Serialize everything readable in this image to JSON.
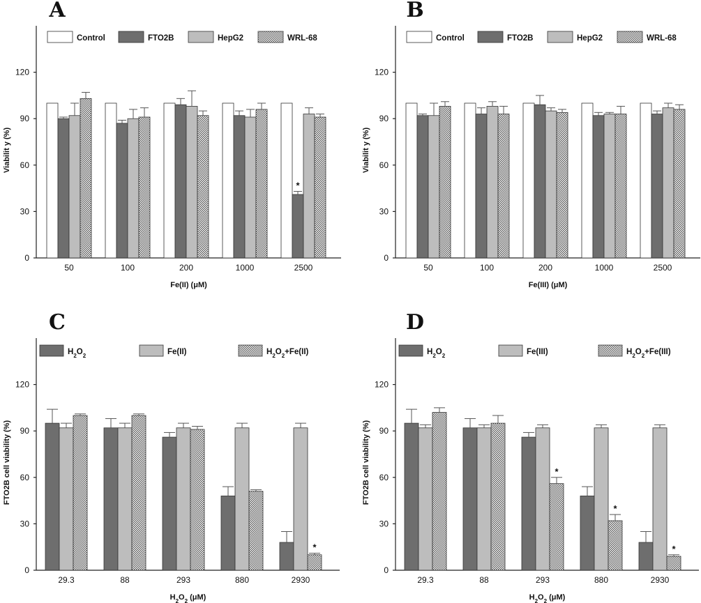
{
  "chart_data": [
    {
      "panel": "A",
      "type": "bar",
      "xlabel": "Fe(II) (μM)",
      "ylabel": "Viabilit y (%)",
      "ylim": [
        0,
        150
      ],
      "yticks": [
        0,
        30,
        60,
        90,
        120
      ],
      "categories": [
        "50",
        "100",
        "200",
        "1000",
        "2500"
      ],
      "legend": [
        "Control",
        "FTO2B",
        "HepG2",
        "WRL-68"
      ],
      "series": [
        {
          "name": "Control",
          "style": "white",
          "values": [
            100,
            100,
            100,
            100,
            100
          ],
          "errors": [
            0,
            0,
            0,
            0,
            0
          ]
        },
        {
          "name": "FTO2B",
          "style": "dark",
          "values": [
            90,
            87,
            99,
            92,
            41
          ],
          "errors": [
            1,
            2,
            4,
            3,
            2
          ]
        },
        {
          "name": "HepG2",
          "style": "light",
          "values": [
            92,
            90,
            98,
            91,
            93
          ],
          "errors": [
            8,
            6,
            10,
            5,
            4
          ]
        },
        {
          "name": "WRL-68",
          "style": "dotted",
          "values": [
            103,
            91,
            92,
            96,
            91
          ],
          "errors": [
            4,
            6,
            3,
            4,
            2
          ]
        }
      ],
      "annotations": [
        {
          "category": 4,
          "series": 1,
          "text": "*"
        }
      ]
    },
    {
      "panel": "B",
      "type": "bar",
      "xlabel": "Fe(III) (μM)",
      "ylabel": "Viabilit y (%)",
      "ylim": [
        0,
        150
      ],
      "yticks": [
        0,
        30,
        60,
        90,
        120
      ],
      "categories": [
        "50",
        "100",
        "200",
        "1000",
        "2500"
      ],
      "legend": [
        "Control",
        "FTO2B",
        "HepG2",
        "WRL-68"
      ],
      "series": [
        {
          "name": "Control",
          "style": "white",
          "values": [
            100,
            100,
            100,
            100,
            100
          ],
          "errors": [
            0,
            0,
            0,
            0,
            0
          ]
        },
        {
          "name": "FTO2B",
          "style": "dark",
          "values": [
            92,
            93,
            99,
            92,
            93
          ],
          "errors": [
            1,
            4,
            6,
            2,
            2
          ]
        },
        {
          "name": "HepG2",
          "style": "light",
          "values": [
            92,
            98,
            95,
            93,
            97
          ],
          "errors": [
            8,
            3,
            2,
            1,
            3
          ]
        },
        {
          "name": "WRL-68",
          "style": "dotted",
          "values": [
            98,
            93,
            94,
            93,
            96
          ],
          "errors": [
            3,
            5,
            2,
            5,
            3
          ]
        }
      ],
      "annotations": []
    },
    {
      "panel": "C",
      "type": "bar",
      "xlabel": "H2O2 (μM)",
      "ylabel": "FTO2B cell viability (%)",
      "ylim": [
        0,
        150
      ],
      "yticks": [
        0,
        30,
        60,
        90,
        120
      ],
      "categories": [
        "29.3",
        "88",
        "293",
        "880",
        "2930"
      ],
      "legend": [
        "H2O2",
        "Fe(II)",
        "H2O2+Fe(II)"
      ],
      "series": [
        {
          "name": "H2O2",
          "style": "dark",
          "values": [
            95,
            92,
            86,
            48,
            18
          ],
          "errors": [
            9,
            6,
            3,
            6,
            7
          ]
        },
        {
          "name": "Fe(II)",
          "style": "light",
          "values": [
            92,
            92,
            92,
            92,
            92
          ],
          "errors": [
            3,
            3,
            3,
            3,
            3
          ]
        },
        {
          "name": "H2O2+Fe(II)",
          "style": "dotted",
          "values": [
            100,
            100,
            91,
            51,
            10
          ],
          "errors": [
            1,
            1,
            2,
            1,
            1
          ]
        }
      ],
      "annotations": [
        {
          "category": 4,
          "series": 2,
          "text": "*"
        }
      ]
    },
    {
      "panel": "D",
      "type": "bar",
      "xlabel": "H2O2 (μM)",
      "ylabel": "FTO2B cell viability (%)",
      "ylim": [
        0,
        150
      ],
      "yticks": [
        0,
        30,
        60,
        90,
        120
      ],
      "categories": [
        "29.3",
        "88",
        "293",
        "880",
        "2930"
      ],
      "legend": [
        "H2O2",
        "Fe(III)",
        "H2O2+Fe(III)"
      ],
      "series": [
        {
          "name": "H2O2",
          "style": "dark",
          "values": [
            95,
            92,
            86,
            48,
            18
          ],
          "errors": [
            9,
            6,
            3,
            6,
            7
          ]
        },
        {
          "name": "Fe(III)",
          "style": "light",
          "values": [
            92,
            92,
            92,
            92,
            92
          ],
          "errors": [
            2,
            2,
            2,
            2,
            2
          ]
        },
        {
          "name": "H2O2+Fe(III)",
          "style": "dotted",
          "values": [
            102,
            95,
            56,
            32,
            9
          ],
          "errors": [
            3,
            5,
            4,
            4,
            1
          ]
        }
      ],
      "annotations": [
        {
          "category": 2,
          "series": 2,
          "text": "*"
        },
        {
          "category": 3,
          "series": 2,
          "text": "*"
        },
        {
          "category": 4,
          "series": 2,
          "text": "*"
        }
      ]
    }
  ],
  "colors": {
    "white": "#ffffff",
    "dark": "#6e6e6e",
    "light": "#bdbdbd",
    "dotted_bg": "#ffffff",
    "dotted_fg": "#5a5a5a",
    "axis": "#222222"
  }
}
